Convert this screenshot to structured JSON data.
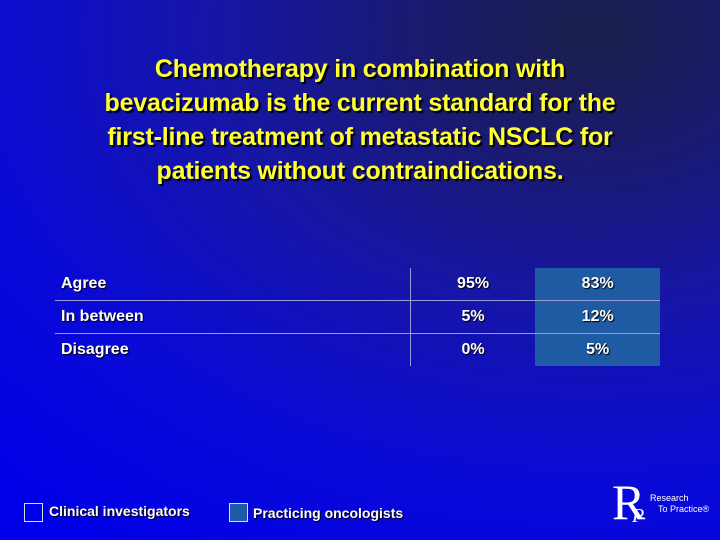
{
  "title_lines": [
    "Chemotherapy in combination with",
    "bevacizumab is the current standard for the",
    "first-line treatment of metastatic NSCLC for",
    "patients without contraindications."
  ],
  "table": {
    "rows": [
      {
        "label": "Agree",
        "clinical_investigators": "95%",
        "practicing_oncologists": "83%"
      },
      {
        "label": "In between",
        "clinical_investigators": "5%",
        "practicing_oncologists": "12%"
      },
      {
        "label": "Disagree",
        "clinical_investigators": "0%",
        "practicing_oncologists": "5%"
      }
    ]
  },
  "legend": {
    "clinical_investigators": "Clinical investigators",
    "practicing_oncologists": "Practicing oncologists"
  },
  "logo": {
    "letter_r": "R",
    "letter_p": "P",
    "line1": "Research",
    "line2": "To Practice®"
  },
  "colors": {
    "title_text": "#ffff33",
    "practicing_oncologists_fill": "#1e5ba2",
    "background_deep": "#0000e8",
    "background_dark": "#1a1f4a"
  }
}
